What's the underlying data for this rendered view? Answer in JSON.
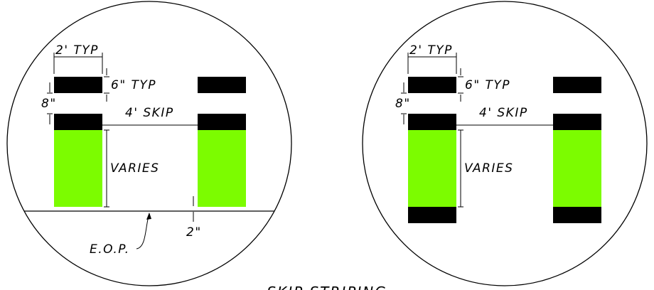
{
  "title": "SKIP STRIPING",
  "colors": {
    "stripe": "#000000",
    "fill_area": "#7cfc00",
    "line": "#000000"
  },
  "left_detail": {
    "width_label": "2' TYP",
    "height_label": "6\" TYP",
    "gap_label": "8\"",
    "skip_label": "4' SKIP",
    "varies_label": "VARIES",
    "offset_label": "2\"",
    "edge_label": "E.O.P."
  },
  "right_detail": {
    "width_label": "2' TYP",
    "height_label": "6\" TYP",
    "gap_label": "8\"",
    "skip_label": "4' SKIP",
    "varies_label": "VARIES"
  }
}
